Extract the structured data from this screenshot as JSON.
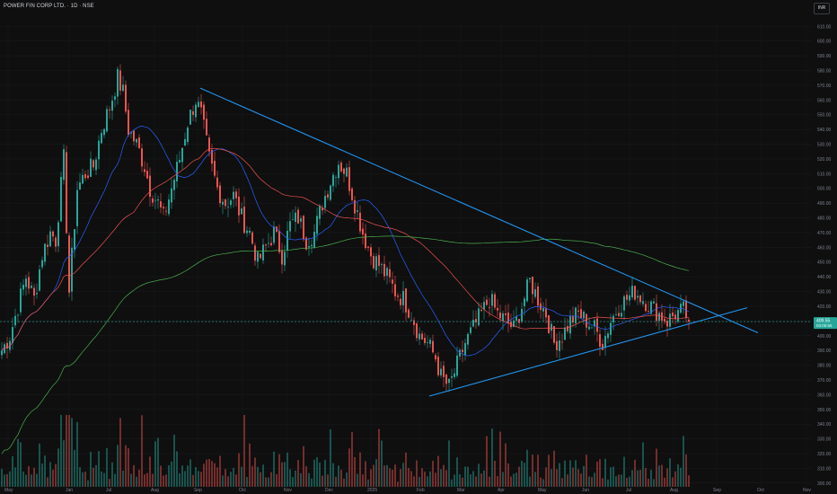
{
  "header": {
    "title": "POWER FIN CORP LTD. · 1D · NSE",
    "currency": "INR"
  },
  "price_label": {
    "price": "409.55",
    "countdown": "03:05:56"
  },
  "colors": {
    "background": "#0f0f0f",
    "up": "#26a69a",
    "down": "#ef5350",
    "sma_fast": "#2962ff",
    "sma_mid": "#ef5350",
    "sma_slow": "#4caf50",
    "trendline": "#2196f3",
    "axis_text": "#7d8290",
    "price_tag": "#26a69a"
  },
  "chart_data": {
    "type": "candlestick",
    "symbol": "POWER FIN CORP LTD.",
    "timeframe": "1D",
    "exchange": "NSE",
    "y_axis": {
      "ticks": [
        300,
        310,
        320,
        330,
        340,
        350,
        360,
        370,
        380,
        390,
        400,
        410,
        420,
        430,
        440,
        450,
        460,
        470,
        480,
        490,
        500,
        510,
        520,
        530,
        540,
        550,
        560,
        570,
        580,
        590,
        600,
        610
      ],
      "tick_labels": [
        "300.00",
        "310.00",
        "320.00",
        "330.00",
        "340.00",
        "350.00",
        "360.00",
        "370.00",
        "380.00",
        "390.00",
        "400.00",
        "410.00",
        "420.00",
        "430.00",
        "440.00",
        "450.00",
        "460.00",
        "470.00",
        "480.00",
        "490.00",
        "500.00",
        "510.00",
        "520.00",
        "530.00",
        "540.00",
        "550.00",
        "560.00",
        "570.00",
        "580.00",
        "590.00",
        "600.00",
        "610.00"
      ],
      "range": [
        295,
        612
      ]
    },
    "x_axis": {
      "tick_labels": [
        "May",
        "Jan",
        "Jul",
        "Aug",
        "Sep",
        "Oct",
        "Nov",
        "Dec",
        "2025",
        "Feb",
        "Mar",
        "Apr",
        "May",
        "Jun",
        "Jul",
        "Aug",
        "Sep",
        "Oct",
        "Nov"
      ]
    },
    "price_waypoints": [
      [
        0,
        390
      ],
      [
        3,
        400
      ],
      [
        6,
        420
      ],
      [
        9,
        440
      ],
      [
        12,
        425
      ],
      [
        15,
        455
      ],
      [
        18,
        470
      ],
      [
        20,
        465
      ],
      [
        23,
        520
      ],
      [
        25,
        430
      ],
      [
        28,
        500
      ],
      [
        31,
        510
      ],
      [
        34,
        515
      ],
      [
        37,
        540
      ],
      [
        40,
        555
      ],
      [
        43,
        575
      ],
      [
        45,
        565
      ],
      [
        47,
        540
      ],
      [
        50,
        530
      ],
      [
        53,
        515
      ],
      [
        55,
        500
      ],
      [
        58,
        490
      ],
      [
        60,
        480
      ],
      [
        63,
        500
      ],
      [
        66,
        520
      ],
      [
        69,
        545
      ],
      [
        72,
        560
      ],
      [
        74,
        550
      ],
      [
        77,
        520
      ],
      [
        80,
        500
      ],
      [
        83,
        490
      ],
      [
        86,
        495
      ],
      [
        89,
        480
      ],
      [
        92,
        470
      ],
      [
        95,
        450
      ],
      [
        98,
        460
      ],
      [
        101,
        470
      ],
      [
        104,
        455
      ],
      [
        107,
        475
      ],
      [
        110,
        480
      ],
      [
        113,
        465
      ],
      [
        116,
        470
      ],
      [
        119,
        490
      ],
      [
        122,
        505
      ],
      [
        125,
        518
      ],
      [
        128,
        510
      ],
      [
        131,
        490
      ],
      [
        134,
        470
      ],
      [
        137,
        455
      ],
      [
        140,
        448
      ],
      [
        143,
        440
      ],
      [
        146,
        430
      ],
      [
        149,
        425
      ],
      [
        152,
        415
      ],
      [
        155,
        400
      ],
      [
        158,
        395
      ],
      [
        161,
        385
      ],
      [
        163,
        372
      ],
      [
        166,
        365
      ],
      [
        169,
        380
      ],
      [
        172,
        395
      ],
      [
        175,
        405
      ],
      [
        178,
        415
      ],
      [
        181,
        425
      ],
      [
        184,
        415
      ],
      [
        187,
        410
      ],
      [
        190,
        405
      ],
      [
        193,
        420
      ],
      [
        196,
        437
      ],
      [
        199,
        425
      ],
      [
        202,
        415
      ],
      [
        205,
        395
      ],
      [
        208,
        400
      ],
      [
        211,
        410
      ],
      [
        214,
        415
      ],
      [
        217,
        410
      ],
      [
        220,
        405
      ],
      [
        223,
        395
      ],
      [
        226,
        410
      ],
      [
        229,
        420
      ],
      [
        232,
        425
      ],
      [
        235,
        430
      ],
      [
        238,
        425
      ],
      [
        241,
        420
      ],
      [
        244,
        415
      ],
      [
        247,
        410
      ],
      [
        250,
        415
      ],
      [
        253,
        417
      ],
      [
        256,
        408
      ]
    ],
    "series": [
      {
        "name": "OHLC",
        "kind": "candles",
        "bars": 256,
        "last": 409.55
      },
      {
        "kind": "sma",
        "window": 20
      },
      {
        "kind": "sma",
        "window": 50
      },
      {
        "kind": "sma",
        "window": 200
      },
      {
        "kind": "volume_bars"
      }
    ],
    "trendlines": [
      {
        "name": "upper",
        "from": {
          "bar": 74,
          "price": 568
        },
        "to": {
          "bar": 281,
          "price": 402
        }
      },
      {
        "name": "lower",
        "from": {
          "bar": 159,
          "price": 359
        },
        "to": {
          "bar": 277,
          "price": 419
        }
      }
    ],
    "current_price": 409.55
  }
}
